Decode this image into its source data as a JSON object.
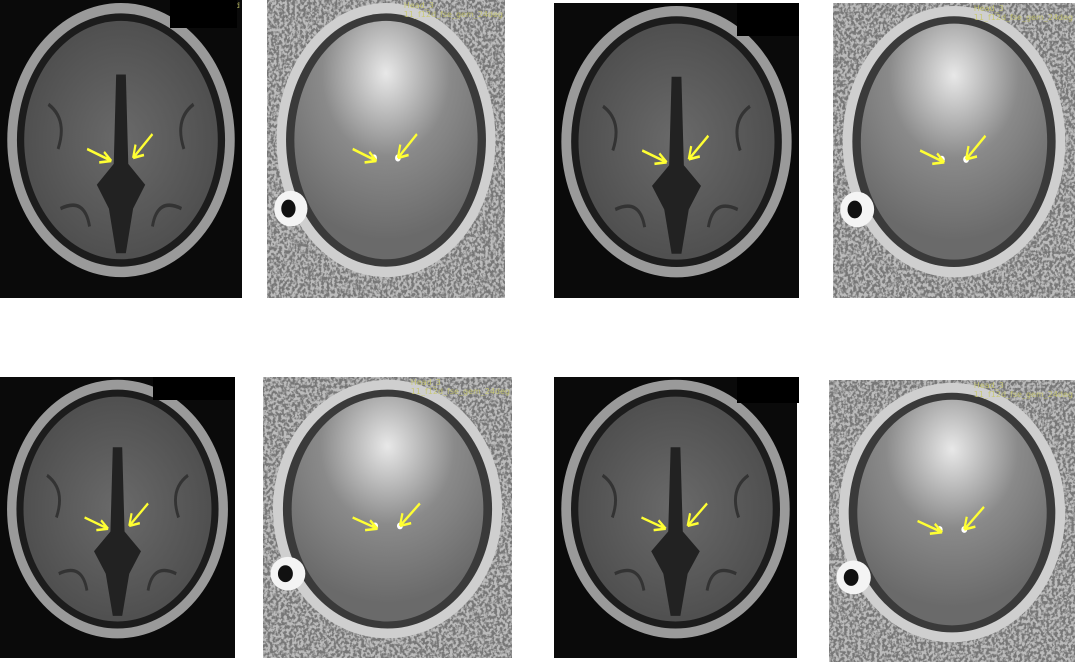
{
  "figure": {
    "arrow_color": "#ffff33",
    "panels": [
      {
        "kind": "t1",
        "label": "11_f3d"
      },
      {
        "kind": "phase",
        "label": "11_f12d_fse_gem_24deg",
        "label2": "Head_3"
      },
      {
        "kind": "t1",
        "label": "11_f3d"
      },
      {
        "kind": "phase",
        "label": "11_f12d_fse_gem_24deg",
        "label2": "Head_3"
      },
      {
        "kind": "t1",
        "label": "11_f3d"
      },
      {
        "kind": "phase",
        "label": "11_f12d_fse_gem_24deg",
        "label2": "Head_3"
      },
      {
        "kind": "t1",
        "label": "11_f3d"
      },
      {
        "kind": "phase",
        "label": "11_f12d_fse_gem_24deg",
        "label2": "Head_3"
      }
    ]
  }
}
